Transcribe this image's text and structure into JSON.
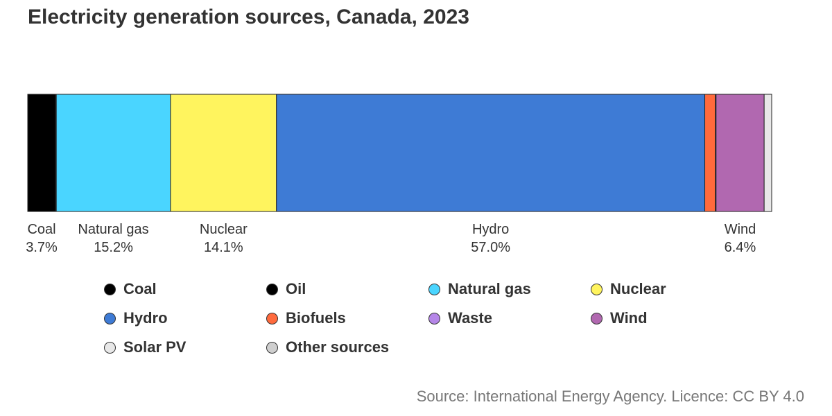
{
  "title": "Electricity generation sources, Canada, 2023",
  "source": "Source: International Energy Agency. Licence: CC BY 4.0",
  "chart_data": {
    "type": "bar",
    "stacked": true,
    "orientation": "horizontal",
    "unit": "%",
    "title": "Electricity generation sources, Canada, 2023",
    "categories": [
      "Coal",
      "Oil",
      "Natural gas",
      "Nuclear",
      "Hydro",
      "Biofuels",
      "Waste",
      "Wind",
      "Solar PV",
      "Other sources"
    ],
    "values": [
      3.7,
      0.1,
      15.2,
      14.1,
      57.0,
      1.4,
      0.1,
      6.4,
      1.0,
      0.0
    ],
    "colors": [
      "#000000",
      "#000000",
      "#4ad5ff",
      "#fff45e",
      "#3e7bd5",
      "#ff6a3d",
      "#b586e8",
      "#b168b0",
      "#e8e8e8",
      "#cfcfcf"
    ],
    "bar_labels": [
      {
        "name": "Coal",
        "value": "3.7%"
      },
      {
        "name": "Natural gas",
        "value": "15.2%"
      },
      {
        "name": "Nuclear",
        "value": "14.1%"
      },
      {
        "name": "Hydro",
        "value": "57.0%"
      },
      {
        "name": "Wind",
        "value": "6.4%"
      }
    ],
    "legend": [
      "Coal",
      "Oil",
      "Natural gas",
      "Nuclear",
      "Hydro",
      "Biofuels",
      "Waste",
      "Wind",
      "Solar PV",
      "Other sources"
    ],
    "legend_position": "bottom"
  }
}
